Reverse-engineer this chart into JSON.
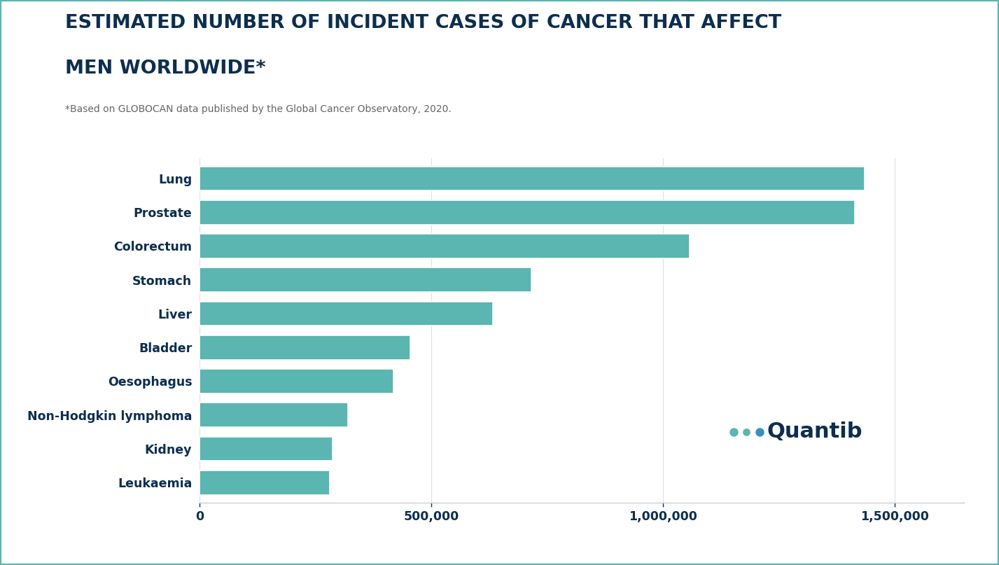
{
  "title_line1": "ESTIMATED NUMBER OF INCIDENT CASES OF CANCER THAT AFFECT",
  "title_line2": "MEN WORLDWIDE*",
  "subtitle": "*Based on GLOBOCAN data published by the Global Cancer Observatory, 2020.",
  "categories": [
    "Leukaemia",
    "Kidney",
    "Non-Hodgkin lymphoma",
    "Oesophagus",
    "Bladder",
    "Liver",
    "Stomach",
    "Colorectum",
    "Prostate",
    "Lung"
  ],
  "values": [
    280000,
    286000,
    320000,
    418000,
    455000,
    632000,
    716000,
    1058000,
    1414000,
    1435000
  ],
  "bar_color": "#5BB5B0",
  "background_color": "#ffffff",
  "title_color": "#0d2e4e",
  "subtitle_color": "#666666",
  "label_color": "#0d2e4e",
  "tick_color": "#0d2e4e",
  "xlim": [
    0,
    1650000
  ],
  "xticks": [
    0,
    500000,
    1000000,
    1500000
  ],
  "xtick_labels": [
    "0",
    "500,000",
    "1,000,000",
    "1,500,000"
  ],
  "bar_height": 0.72,
  "quantib_text": "Quantib",
  "quantib_color": "#0d2e4e",
  "border_color": "#5BB5B0",
  "grid_color": "#e0e0e0",
  "spine_color": "#cccccc"
}
